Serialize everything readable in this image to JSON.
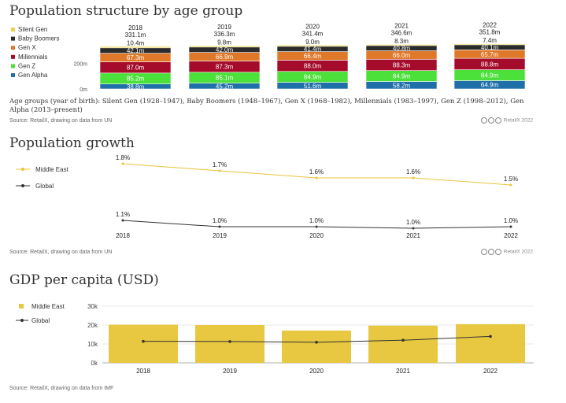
{
  "sections": {
    "age": {
      "title": "Population structure by age group",
      "note": "Age groups (year of birth): Silent Gen (1928–1947), Baby Boomers (1948–1967), Gen X (1968–1982), Millennials (1983–1997), Gen Z (1998–2012), Gen Alpha (2013–present)",
      "source": "Source: RetailX, drawing on data from UN",
      "credit": "RetailX 2022"
    },
    "growth": {
      "title": "Population growth",
      "source": "Source: RetailX, drawing on data from UN",
      "credit": "RetailX 2022"
    },
    "gdp": {
      "title": "GDP per capita (USD)",
      "source": "Source: RetailX, drawing on data from IMF"
    }
  },
  "chart_data": [
    {
      "type": "bar",
      "stacked": true,
      "orientation": "vertical",
      "categories": [
        "2018",
        "2019",
        "2020",
        "2021",
        "2022"
      ],
      "totals": [
        "331.1m",
        "336.3m",
        "341.4m",
        "346.6m",
        "351.8m"
      ],
      "series": [
        {
          "name": "Gen Alpha",
          "color": "#1f6fa8",
          "values": [
            38.8,
            45.2,
            51.6,
            58.2,
            64.9
          ],
          "labels": [
            "38.8m",
            "45.2m",
            "51.6m",
            "58.2m",
            "64.9m"
          ]
        },
        {
          "name": "Gen Z",
          "color": "#4ce03a",
          "values": [
            85.2,
            85.1,
            84.9,
            84.9,
            84.9
          ],
          "labels": [
            "85.2m",
            "85.1m",
            "84.9m",
            "84.9m",
            "84.9m"
          ]
        },
        {
          "name": "Millennials",
          "color": "#a50b2b",
          "values": [
            87.0,
            87.3,
            88.0,
            88.3,
            88.8
          ],
          "labels": [
            "87.0m",
            "87.3m",
            "88.0m",
            "88.3m",
            "88.8m"
          ]
        },
        {
          "name": "Gen X",
          "color": "#e0782a",
          "values": [
            67.3,
            66.9,
            66.4,
            66.0,
            65.7
          ],
          "labels": [
            "67.3m",
            "66.9m",
            "66.4m",
            "66.0m",
            "65.7m"
          ]
        },
        {
          "name": "Baby Boomers",
          "color": "#2b2b2b",
          "values": [
            42.1,
            42.0,
            41.4,
            40.8,
            40.1
          ],
          "labels": [
            "42.1m",
            "42.0m",
            "41.4m",
            "40.8m",
            "40.1m"
          ]
        },
        {
          "name": "Silent Gen",
          "color": "#e8d04a",
          "values": [
            10.4,
            9.8,
            9.0,
            8.3,
            7.4
          ],
          "labels": [
            "10.4m",
            "9.8m",
            "9.0m",
            "8.3m",
            "7.4m"
          ]
        }
      ],
      "legend_order": [
        "Silent Gen",
        "Baby Boomers",
        "Gen X",
        "Millennials",
        "Gen Z",
        "Gen Alpha"
      ],
      "yticks": [
        "0m",
        "200m"
      ],
      "ylim": [
        0,
        352
      ],
      "legend": "left"
    },
    {
      "type": "line",
      "categories": [
        "2018",
        "2019",
        "2020",
        "2021",
        "2022"
      ],
      "series": [
        {
          "name": "Middle East",
          "color": "#e8c43a",
          "values": [
            1.8,
            1.7,
            1.6,
            1.6,
            1.5
          ],
          "labels": [
            "1.8%",
            "1.7%",
            "1.6%",
            "1.6%",
            "1.5%"
          ]
        },
        {
          "name": "Global",
          "color": "#333333",
          "values": [
            1.1,
            1.0,
            1.0,
            1.0,
            1.0
          ],
          "labels": [
            "1.1%",
            "1.0%",
            "1.0%",
            "1.0%",
            "1.0%"
          ]
        }
      ],
      "legend": "left"
    },
    {
      "type": "bar",
      "categories": [
        "2018",
        "2019",
        "2020",
        "2021",
        "2022"
      ],
      "series": [
        {
          "name": "Middle East",
          "type": "bar",
          "color": "#e8c840",
          "values": [
            20200,
            20000,
            17100,
            19700,
            20500
          ]
        },
        {
          "name": "Global",
          "type": "line",
          "color": "#333333",
          "values": [
            11400,
            11300,
            10900,
            12000,
            14000
          ]
        }
      ],
      "yticks": [
        "0k",
        "10k",
        "20k",
        "30k"
      ],
      "ylim": [
        0,
        30000
      ],
      "grid": true,
      "legend": "left"
    }
  ]
}
